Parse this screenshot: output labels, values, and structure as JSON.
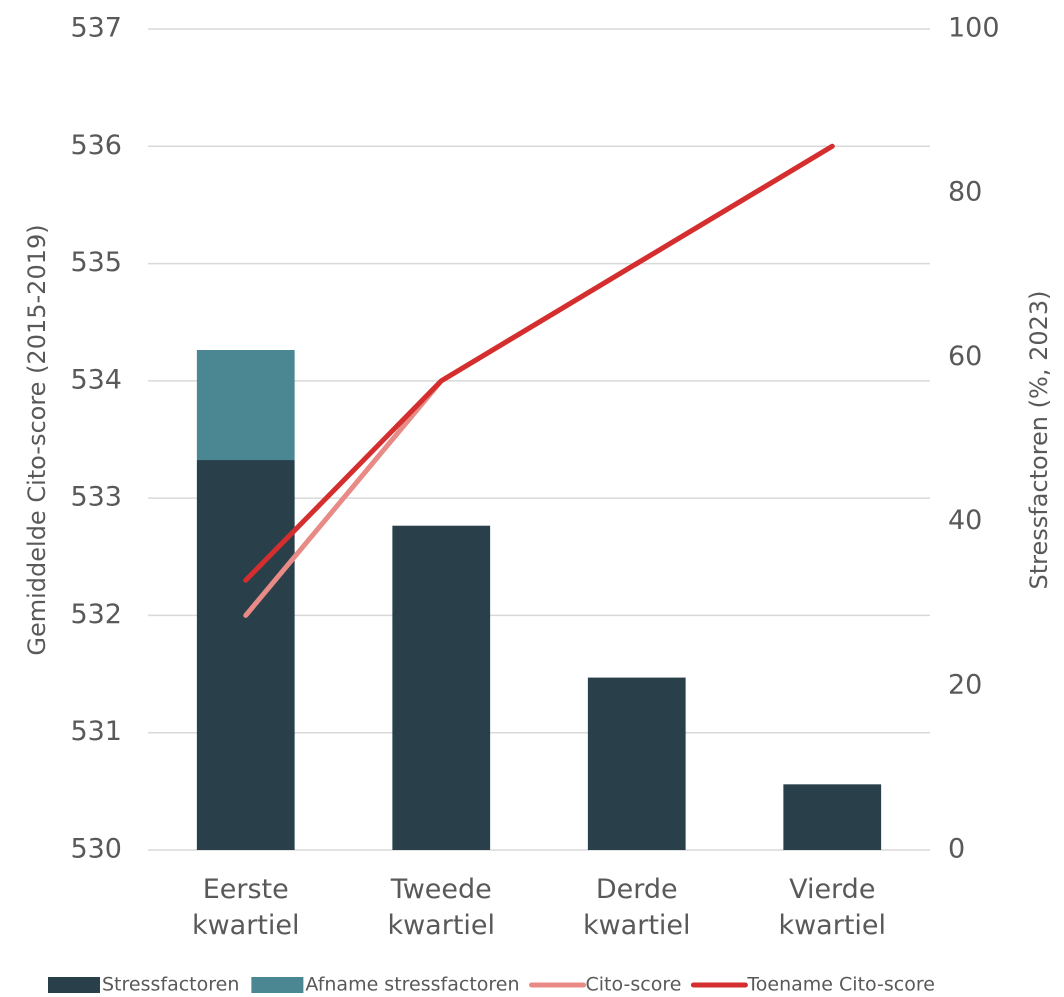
{
  "chart_data": {
    "type": "bar-line",
    "ylabel": "Gemiddelde Cito-score (2015-2019)",
    "y2label": "Stressfactoren (%, 2023)",
    "categories": [
      "Eerste kwartiel",
      "Tweede kwartiel",
      "Derde kwartiel",
      "Vierde kwartiel"
    ],
    "series": [
      {
        "name": "Stressfactoren",
        "type": "bar",
        "color": "#29404a",
        "axis": "y2",
        "values": [
          47.5,
          39.5,
          21,
          8
        ]
      },
      {
        "name": "Afname stressfactoren",
        "type": "bar",
        "stacked": true,
        "color": "#4a8792",
        "axis": "y2",
        "values": [
          13.4,
          null,
          null,
          null
        ]
      },
      {
        "name": "Cito-score",
        "type": "line",
        "color": "#e88a86",
        "values": [
          532.0,
          534.0,
          535.0,
          536.0
        ]
      },
      {
        "name": "Toename Cito-score",
        "type": "line",
        "color": "#d42e2e",
        "values": [
          532.3,
          534.0,
          535.0,
          536.0
        ]
      }
    ],
    "ylim": [
      530,
      537
    ],
    "yticks": [
      530,
      531,
      532,
      533,
      534,
      535,
      536,
      537
    ],
    "y2lim": [
      0,
      100
    ],
    "y2ticks": [
      0,
      20,
      40,
      60,
      80,
      100
    ],
    "grid": true,
    "legend": "bottom"
  }
}
